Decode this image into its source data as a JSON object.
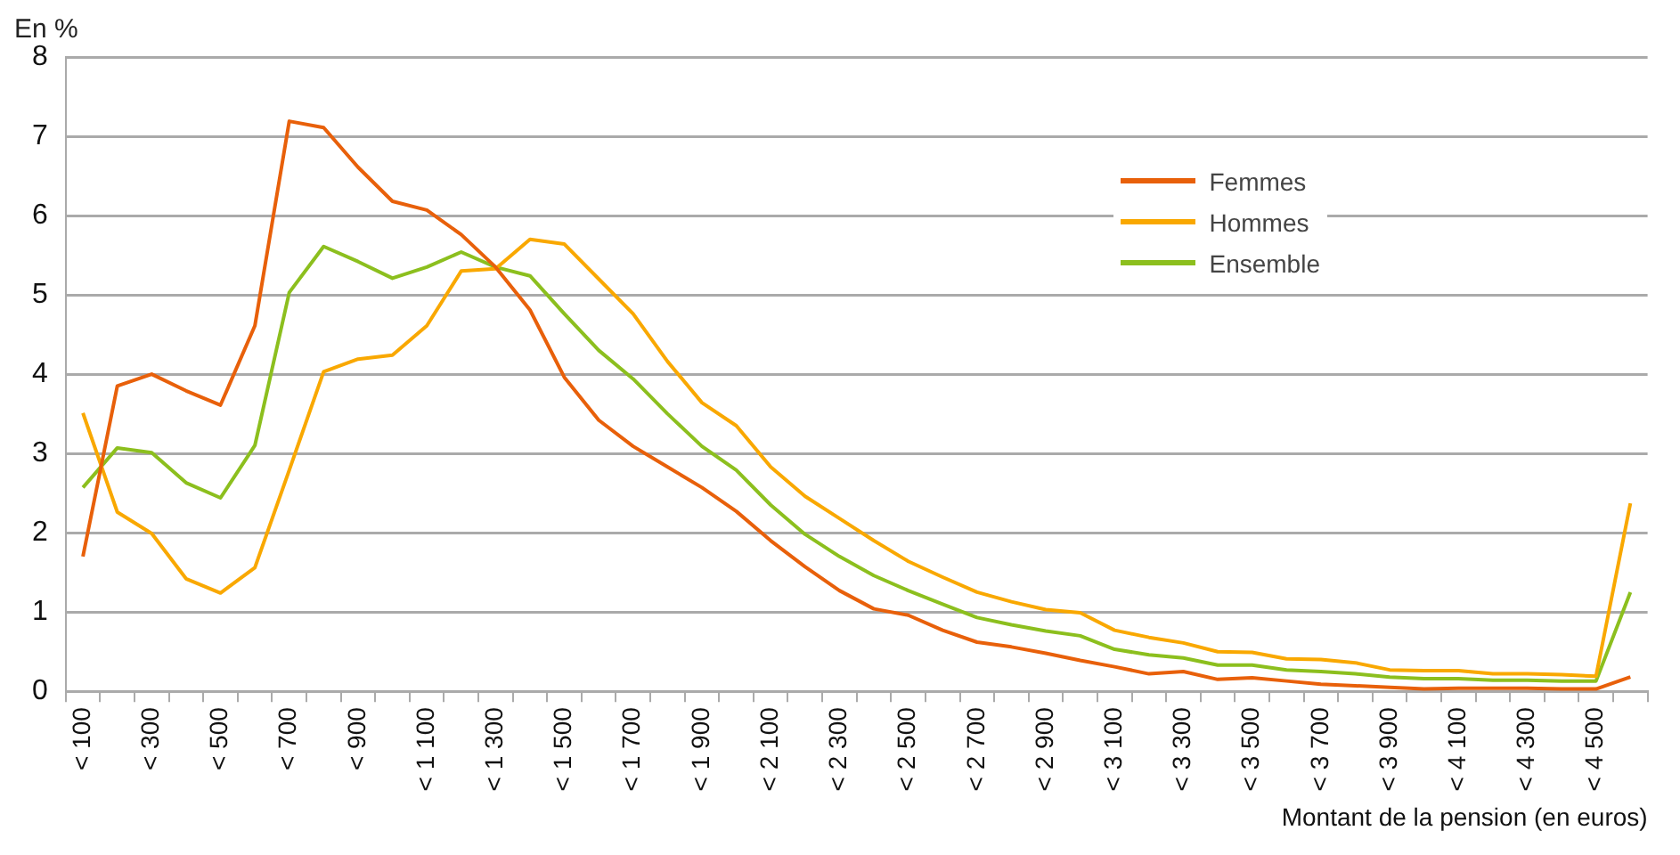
{
  "chart_data": {
    "type": "line",
    "ylabel": "En %",
    "xlabel": "Montant de la pension (en euros)",
    "categories": [
      "< 100",
      null,
      "< 300",
      null,
      "< 500",
      null,
      "< 700",
      null,
      "< 900",
      null,
      "< 1 100",
      null,
      "< 1 300",
      null,
      "< 1 500",
      null,
      "< 1 700",
      null,
      "< 1 900",
      null,
      "< 2 100",
      null,
      "< 2 300",
      null,
      "< 2 500",
      null,
      "< 2 700",
      null,
      "< 2 900",
      null,
      "< 3 100",
      null,
      "< 3 300",
      null,
      "< 3 500",
      null,
      "< 3 700",
      null,
      "< 3 900",
      null,
      "< 4 100",
      null,
      "< 4 300",
      null,
      "< 4 500",
      null
    ],
    "series": [
      {
        "name": "Femmes",
        "color": "#e8600a",
        "values": [
          1.7,
          3.85,
          4.0,
          3.79,
          3.61,
          4.61,
          7.19,
          7.11,
          6.61,
          6.18,
          6.07,
          5.76,
          5.35,
          4.81,
          3.96,
          3.42,
          3.09,
          2.83,
          2.57,
          2.27,
          1.9,
          1.57,
          1.27,
          1.04,
          0.96,
          0.77,
          0.62,
          0.56,
          0.48,
          0.39,
          0.31,
          0.22,
          0.25,
          0.15,
          0.17,
          0.13,
          0.09,
          0.07,
          0.05,
          0.03,
          0.04,
          0.04,
          0.04,
          0.03,
          0.03,
          0.18
        ]
      },
      {
        "name": "Hommes",
        "color": "#f9a800",
        "values": [
          3.51,
          2.26,
          1.99,
          1.42,
          1.24,
          1.56,
          2.79,
          4.03,
          4.19,
          4.24,
          4.61,
          5.3,
          5.33,
          5.7,
          5.64,
          5.2,
          4.76,
          4.16,
          3.64,
          3.35,
          2.83,
          2.46,
          2.18,
          1.9,
          1.64,
          1.44,
          1.25,
          1.13,
          1.03,
          0.99,
          0.77,
          0.68,
          0.61,
          0.5,
          0.49,
          0.41,
          0.4,
          0.36,
          0.27,
          0.26,
          0.26,
          0.22,
          0.22,
          0.21,
          0.19,
          2.37
        ]
      },
      {
        "name": "Ensemble",
        "color": "#8cbf1e",
        "values": [
          2.57,
          3.07,
          3.01,
          2.63,
          2.44,
          3.1,
          5.03,
          5.61,
          5.42,
          5.21,
          5.35,
          5.54,
          5.35,
          5.24,
          4.76,
          4.3,
          3.94,
          3.5,
          3.09,
          2.79,
          2.35,
          1.98,
          1.7,
          1.46,
          1.27,
          1.1,
          0.93,
          0.84,
          0.76,
          0.7,
          0.53,
          0.46,
          0.42,
          0.33,
          0.33,
          0.27,
          0.25,
          0.22,
          0.18,
          0.16,
          0.16,
          0.14,
          0.14,
          0.13,
          0.13,
          1.25
        ]
      }
    ],
    "ylim": [
      0,
      8
    ],
    "yticks": [
      0,
      1,
      2,
      3,
      4,
      5,
      6,
      7,
      8
    ],
    "grid": "y",
    "legend": "top right",
    "marker": "none",
    "line_style": "solid"
  }
}
